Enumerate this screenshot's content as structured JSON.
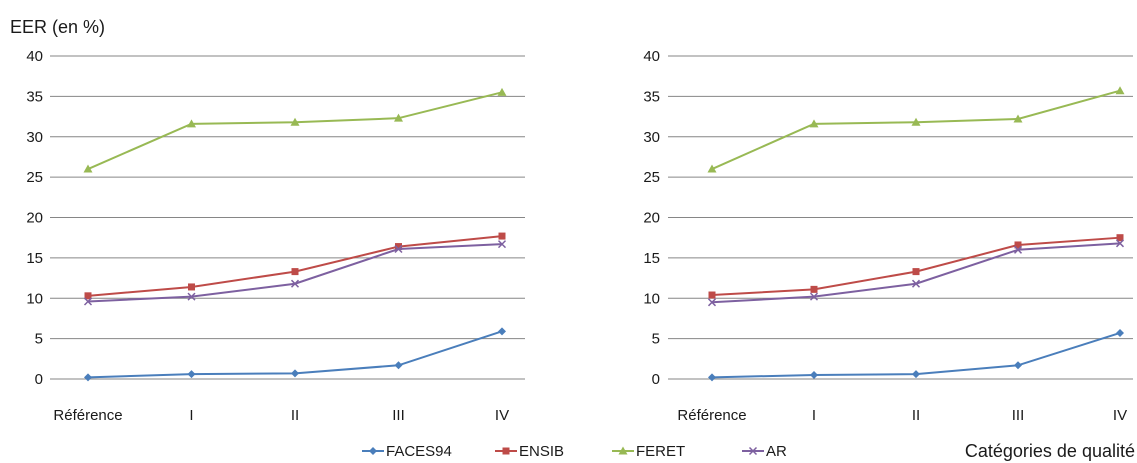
{
  "chart_data": [
    {
      "type": "line",
      "ylabel": "EER (en %)",
      "xlabel": "",
      "categories": [
        "Référence",
        "I",
        "II",
        "III",
        "IV"
      ],
      "ylim": [
        0,
        40
      ],
      "yticks": [
        0,
        5,
        10,
        15,
        20,
        25,
        30,
        35,
        40
      ],
      "grid": "horizontal",
      "series": [
        {
          "name": "FACES94",
          "color": "#4a7ebb",
          "marker": "diamond",
          "values": [
            0.2,
            0.6,
            0.7,
            1.7,
            5.9
          ]
        },
        {
          "name": "ENSIB",
          "color": "#be4b48",
          "marker": "square",
          "values": [
            10.3,
            11.4,
            13.3,
            16.4,
            17.7
          ]
        },
        {
          "name": "FERET",
          "color": "#98b954",
          "marker": "triangle",
          "values": [
            26.0,
            31.6,
            31.8,
            32.3,
            35.5
          ]
        },
        {
          "name": "AR",
          "color": "#7d60a0",
          "marker": "x",
          "values": [
            9.6,
            10.2,
            11.8,
            16.1,
            16.7
          ]
        }
      ]
    },
    {
      "type": "line",
      "ylabel": "",
      "xlabel": "Catégories de qualité",
      "categories": [
        "Référence",
        "I",
        "II",
        "III",
        "IV"
      ],
      "ylim": [
        0,
        40
      ],
      "yticks": [
        0,
        5,
        10,
        15,
        20,
        25,
        30,
        35,
        40
      ],
      "grid": "horizontal",
      "series": [
        {
          "name": "FACES94",
          "color": "#4a7ebb",
          "marker": "diamond",
          "values": [
            0.2,
            0.5,
            0.6,
            1.7,
            5.7
          ]
        },
        {
          "name": "ENSIB",
          "color": "#be4b48",
          "marker": "square",
          "values": [
            10.4,
            11.1,
            13.3,
            16.6,
            17.5
          ]
        },
        {
          "name": "FERET",
          "color": "#98b954",
          "marker": "triangle",
          "values": [
            26.0,
            31.6,
            31.8,
            32.2,
            35.7
          ]
        },
        {
          "name": "AR",
          "color": "#7d60a0",
          "marker": "x",
          "values": [
            9.5,
            10.2,
            11.8,
            16.0,
            16.8
          ]
        }
      ]
    }
  ],
  "legend": {
    "placement": "bottom",
    "items": [
      {
        "name": "FACES94",
        "color": "#4a7ebb",
        "marker": "diamond"
      },
      {
        "name": "ENSIB",
        "color": "#be4b48",
        "marker": "square"
      },
      {
        "name": "FERET",
        "color": "#98b954",
        "marker": "triangle"
      },
      {
        "name": "AR",
        "color": "#7d60a0",
        "marker": "x"
      }
    ]
  }
}
